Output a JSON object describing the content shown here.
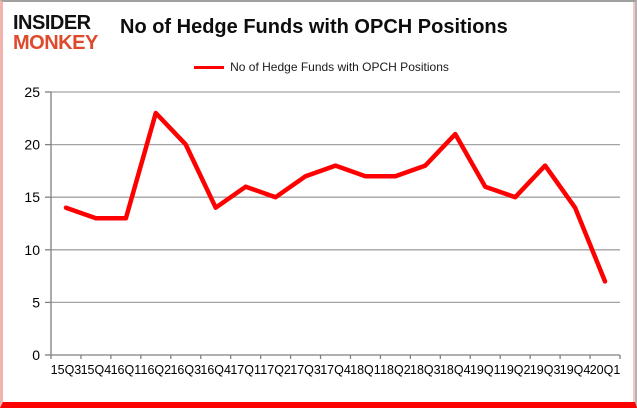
{
  "logo": {
    "line1": "INSIDER",
    "line2": "MONKEY"
  },
  "header": {
    "title": "No of Hedge Funds with OPCH Positions"
  },
  "legend": {
    "label": "No of Hedge Funds with OPCH Positions",
    "line_color": "#ff0000"
  },
  "colors": {
    "series_line": "#ff0000",
    "gridline": "#a3a3a3",
    "axis": "#808080",
    "logo_red": "#dd4a2c",
    "frame_pink": "#f2b3ae",
    "frame_bottom_red": "#fe0000"
  },
  "chart_data": {
    "type": "line",
    "title": "No of Hedge Funds with OPCH Positions",
    "categories": [
      "15Q3",
      "15Q4",
      "16Q1",
      "16Q2",
      "16Q3",
      "16Q4",
      "17Q1",
      "17Q2",
      "17Q3",
      "17Q4",
      "18Q1",
      "18Q2",
      "18Q3",
      "18Q4",
      "19Q1",
      "19Q2",
      "19Q3",
      "19Q4",
      "20Q1"
    ],
    "series": [
      {
        "name": "No of Hedge Funds with OPCH Positions",
        "color": "#ff0000",
        "values": [
          14,
          13,
          13,
          23,
          20,
          14,
          16,
          15,
          17,
          18,
          17,
          17,
          18,
          21,
          16,
          15,
          18,
          14,
          7
        ]
      }
    ],
    "xlabel": "",
    "ylabel": "",
    "ylim": [
      0,
      25
    ],
    "yticks": [
      0,
      5,
      10,
      15,
      20,
      25
    ],
    "grid": true,
    "legend_position": "top-center"
  }
}
